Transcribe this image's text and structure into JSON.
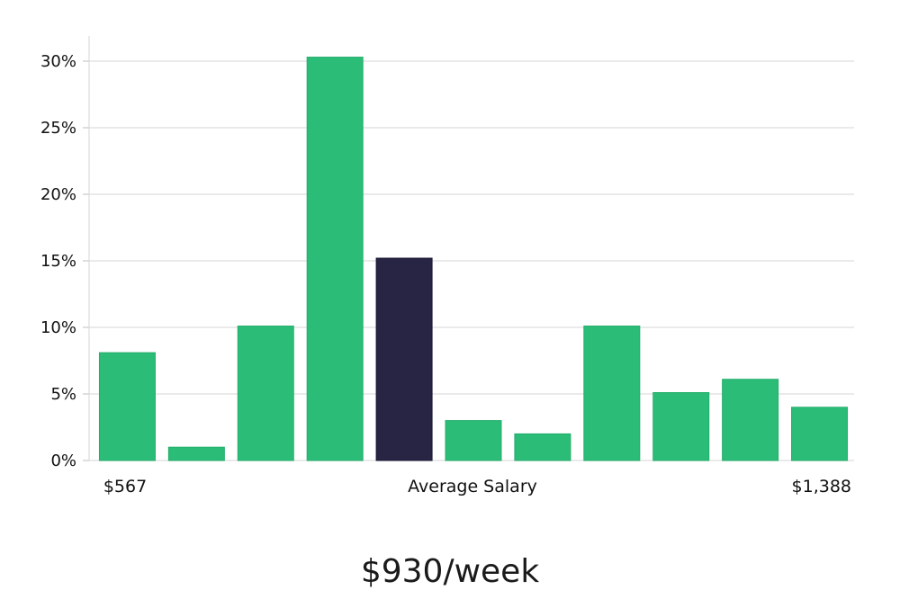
{
  "chart_data": {
    "type": "bar",
    "title": "",
    "xlabel": "Average Salary",
    "ylabel": "",
    "x_min_label": "$567",
    "x_max_label": "$1,388",
    "ylim": [
      0,
      32
    ],
    "yticks": [
      0,
      5,
      10,
      15,
      20,
      25,
      30
    ],
    "ytick_suffix": "%",
    "grid": true,
    "values": [
      8.1,
      1.0,
      10.1,
      30.3,
      15.2,
      3.0,
      2.0,
      10.1,
      5.1,
      6.1,
      4.0
    ],
    "highlight_index": 4,
    "bar_color": "#2bbd77",
    "highlight_color": "#272444",
    "grid_color": "#e3e3e3"
  },
  "headline": "$930/week"
}
